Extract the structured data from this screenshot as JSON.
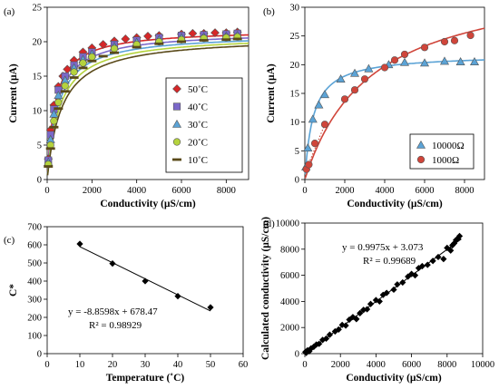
{
  "chart_data": [
    {
      "panel": "(a)",
      "type": "scatter",
      "xlabel": "Conductivity (µS/cm)",
      "ylabel": "Current (µA)",
      "xlim": [
        0,
        9000
      ],
      "ylim": [
        0,
        25
      ],
      "xticks": [
        "0",
        "2000",
        "4000",
        "6000",
        "8000"
      ],
      "yticks": [
        "0",
        "5",
        "10",
        "15",
        "20",
        "25"
      ],
      "grid": false,
      "legend_position": "lower-right",
      "series": [
        {
          "name": "50˚C",
          "marker": "diamond",
          "color": "#d62728",
          "fit_plateau": 21.8,
          "fit_k": 350,
          "x": [
            50,
            150,
            300,
            500,
            700,
            900,
            1200,
            1600,
            2000,
            2500,
            3000,
            3500,
            4000,
            4500,
            5000,
            6000,
            6500,
            7000,
            7500,
            8000,
            8500
          ],
          "y": [
            3.0,
            7.2,
            10.8,
            13.5,
            15.0,
            16.0,
            17.3,
            18.5,
            19.1,
            19.6,
            20.1,
            20.4,
            20.6,
            20.8,
            20.9,
            21.1,
            21.2,
            21.2,
            21.3,
            21.3,
            21.4
          ]
        },
        {
          "name": "40˚C",
          "marker": "square",
          "color": "#7b68c9",
          "fit_plateau": 21.5,
          "fit_k": 420,
          "x": [
            50,
            150,
            300,
            500,
            800,
            1200,
            1600,
            2000,
            3000,
            4000,
            5000,
            6000,
            7000,
            8000,
            8500
          ],
          "y": [
            2.8,
            6.5,
            10.2,
            13.0,
            15.0,
            16.6,
            17.8,
            18.5,
            19.6,
            20.2,
            20.6,
            20.9,
            21.0,
            21.1,
            21.2
          ]
        },
        {
          "name": "30˚C",
          "marker": "triangle",
          "color": "#5ba3d6",
          "fit_plateau": 21.2,
          "fit_k": 480,
          "x": [
            50,
            150,
            300,
            500,
            800,
            1200,
            1600,
            2000,
            3000,
            4000,
            5000,
            6000,
            7000,
            8000,
            8500
          ],
          "y": [
            2.5,
            5.8,
            9.5,
            12.2,
            14.4,
            16.2,
            17.4,
            18.2,
            19.3,
            19.9,
            20.3,
            20.6,
            20.7,
            20.8,
            20.9
          ]
        },
        {
          "name": "20˚C",
          "marker": "circle",
          "color": "#b5d33d",
          "fit_plateau": 21.0,
          "fit_k": 560,
          "x": [
            50,
            150,
            300,
            500,
            800,
            1200,
            1600,
            2000,
            3000,
            4000,
            5000,
            6000,
            7000,
            8000,
            8500
          ],
          "y": [
            2.2,
            5.0,
            8.5,
            11.2,
            13.6,
            15.6,
            16.9,
            17.8,
            19.0,
            19.6,
            20.0,
            20.3,
            20.5,
            20.6,
            20.7
          ]
        },
        {
          "name": "10˚C",
          "marker": "dash",
          "color": "#5a4a1a",
          "fit_plateau": 20.8,
          "fit_k": 650,
          "x": [
            50,
            150,
            300,
            500,
            800,
            1200,
            1600,
            2000,
            2500,
            3000,
            4000,
            5000,
            6000,
            7000,
            8000,
            8500
          ],
          "y": [
            1.9,
            4.5,
            7.6,
            10.3,
            12.8,
            14.8,
            16.2,
            17.2,
            17.9,
            18.4,
            19.2,
            19.7,
            20.0,
            20.2,
            20.3,
            20.4
          ]
        }
      ]
    },
    {
      "panel": "(b)",
      "type": "scatter",
      "xlabel": "Conductivity (µS/cm)",
      "ylabel": "Current (µA)",
      "xlim": [
        0,
        9000
      ],
      "ylim": [
        0,
        30
      ],
      "xticks": [
        "0",
        "2000",
        "4000",
        "6000",
        "8000"
      ],
      "yticks": [
        "0",
        "5",
        "10",
        "15",
        "20",
        "25",
        "30"
      ],
      "grid": false,
      "legend_position": "lower-right",
      "series": [
        {
          "name": "10000Ω",
          "marker": "triangle",
          "color": "#5ba3d6",
          "fit_plateau": 21.8,
          "fit_k": 420,
          "x": [
            50,
            150,
            400,
            700,
            1000,
            1800,
            2500,
            3200,
            4200,
            5000,
            6000,
            7000,
            7800,
            8500
          ],
          "y": [
            2.2,
            5.5,
            10.5,
            13.0,
            14.8,
            17.5,
            18.5,
            19.3,
            20.0,
            20.4,
            20.3,
            20.6,
            20.5,
            20.5
          ]
        },
        {
          "name": "1000Ω",
          "marker": "circle",
          "color": "#d0453a",
          "fit_plateau": 36,
          "fit_k": 3300,
          "x": [
            80,
            200,
            500,
            1000,
            2000,
            2500,
            3000,
            4000,
            4500,
            5000,
            6000,
            7000,
            7500,
            8300
          ],
          "y": [
            1.8,
            2.6,
            6.3,
            9.6,
            14.0,
            15.6,
            17.5,
            19.5,
            20.8,
            21.8,
            23.0,
            24.0,
            24.2,
            25.1
          ]
        }
      ]
    },
    {
      "panel": "(c)",
      "type": "scatter",
      "xlabel": "Temperature (˚C)",
      "ylabel": "C*",
      "xlim": [
        0,
        60
      ],
      "ylim": [
        0,
        700
      ],
      "xticks": [
        "0",
        "10",
        "20",
        "30",
        "40",
        "50",
        "60"
      ],
      "yticks": [
        "0",
        "100",
        "200",
        "300",
        "400",
        "500",
        "600",
        "700"
      ],
      "grid": false,
      "x": [
        10,
        20,
        30,
        40,
        50
      ],
      "y": [
        605,
        497,
        400,
        317,
        255
      ],
      "trendline": {
        "slope": -8.8598,
        "intercept": 678.47
      },
      "equation": "y = -8.8598x + 678.47",
      "r2": "R² = 0.98929"
    },
    {
      "panel": "(d)",
      "type": "scatter",
      "xlabel": "Conductivity (µS/cm)",
      "ylabel": "Calculated conductivity (µS/cm)",
      "xlim": [
        0,
        10000
      ],
      "ylim": [
        0,
        10000
      ],
      "xticks": [
        "0",
        "2000",
        "4000",
        "6000",
        "8000",
        "10000"
      ],
      "yticks": [
        "0",
        "2000",
        "4000",
        "6000",
        "8000",
        "10000"
      ],
      "grid": false,
      "x": [
        30,
        80,
        150,
        250,
        350,
        500,
        650,
        800,
        1000,
        1200,
        1400,
        1700,
        1900,
        2100,
        2300,
        2500,
        2700,
        2900,
        3100,
        3300,
        3500,
        3700,
        4000,
        4200,
        4400,
        4600,
        5000,
        5200,
        5500,
        5800,
        6000,
        6200,
        6400,
        6600,
        6900,
        7200,
        7500,
        7800,
        8000,
        8200,
        8300,
        8400,
        8500,
        8600,
        8700
      ],
      "y": [
        120,
        60,
        250,
        180,
        400,
        520,
        700,
        750,
        1050,
        1150,
        1450,
        1700,
        1850,
        2200,
        2150,
        2600,
        2800,
        2650,
        3100,
        3350,
        3400,
        3800,
        4100,
        4000,
        4500,
        4650,
        4900,
        5300,
        5450,
        5900,
        6100,
        6000,
        6550,
        6700,
        6800,
        7100,
        7400,
        7250,
        8100,
        7900,
        8300,
        8450,
        8700,
        8800,
        9000
      ],
      "trendline": {
        "slope": 0.9975,
        "intercept": 3.073
      },
      "equation": "y = 0.9975x + 3.073",
      "r2": "R² = 0.99689"
    }
  ]
}
